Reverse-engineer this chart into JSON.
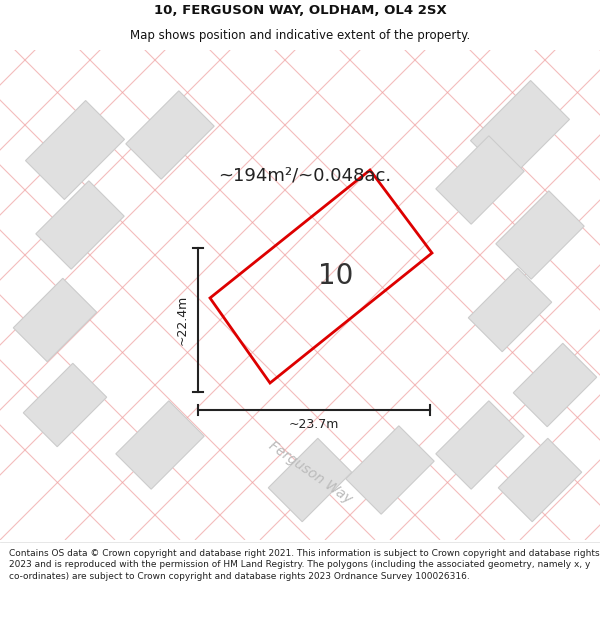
{
  "title_line1": "10, FERGUSON WAY, OLDHAM, OL4 2SX",
  "title_line2": "Map shows position and indicative extent of the property.",
  "footer_text": "Contains OS data © Crown copyright and database right 2021. This information is subject to Crown copyright and database rights 2023 and is reproduced with the permission of HM Land Registry. The polygons (including the associated geometry, namely x, y co-ordinates) are subject to Crown copyright and database rights 2023 Ordnance Survey 100026316.",
  "area_label": "~194m²/~0.048ac.",
  "width_label": "~23.7m",
  "height_label": "~22.4m",
  "plot_number": "10",
  "bg_color": "#f2f2f2",
  "plot_stroke": "#dd0000",
  "road_label": "Ferguson Way",
  "building_color": "#e0e0e0",
  "building_stroke": "#cccccc",
  "road_line_color": "#f0a0a0",
  "dim_line_color": "#222222",
  "road_text_color": "#bbbbbb",
  "title_fontsize": 9.5,
  "subtitle_fontsize": 8.5,
  "area_fontsize": 13,
  "plot_num_fontsize": 20,
  "dim_fontsize": 9,
  "road_fontsize": 10,
  "footer_fontsize": 6.5
}
